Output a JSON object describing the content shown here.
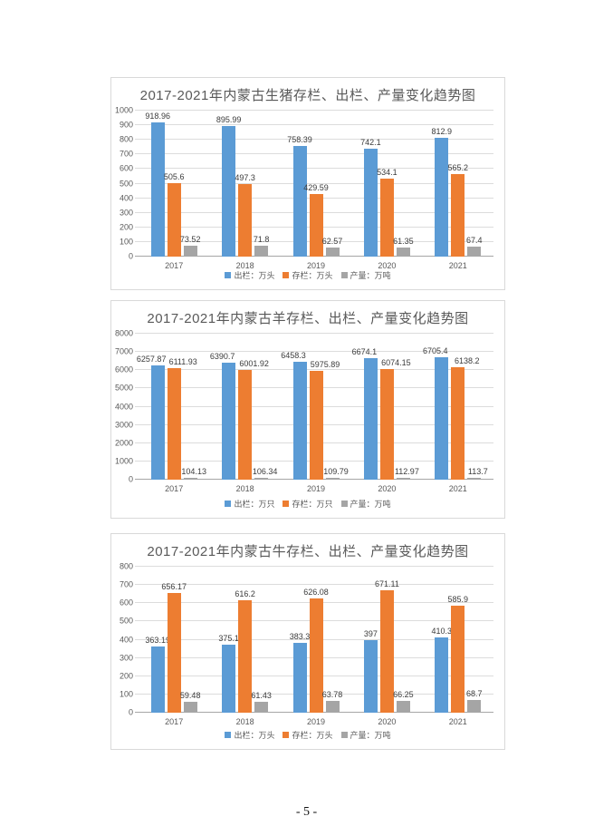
{
  "page": {
    "footer": "- 5 -"
  },
  "colors": {
    "blue": "#5B9BD5",
    "orange": "#ED7D31",
    "gray": "#A5A5A5",
    "title_text": "#595959",
    "axis_text": "#595959",
    "label_text": "#3B3B3B",
    "gridline": "#DCDCDC",
    "axis_line": "#A6A6A6",
    "panel_border": "#D9D9D9"
  },
  "chart_data": [
    {
      "type": "bar",
      "title": "2017-2021年内蒙古生猪存栏、出栏、产量变化趋势图",
      "categories": [
        "2017",
        "2018",
        "2019",
        "2020",
        "2021"
      ],
      "series": [
        {
          "name": "出栏：万头",
          "color_key": "blue",
          "values": [
            918.96,
            895.99,
            758.39,
            742.1,
            812.9
          ]
        },
        {
          "name": "存栏：万头",
          "color_key": "orange",
          "values": [
            505.6,
            497.3,
            429.59,
            534.1,
            565.2
          ]
        },
        {
          "name": "产量：万吨",
          "color_key": "gray",
          "values": [
            73.52,
            71.8,
            62.57,
            61.35,
            67.4
          ]
        }
      ],
      "ylim": [
        0,
        1000
      ],
      "ytick_step": 100,
      "grid": true,
      "legend_position": "bottom",
      "label_dx": [
        0,
        0,
        0
      ]
    },
    {
      "type": "bar",
      "title": "2017-2021年内蒙古羊存栏、出栏、产量变化趋势图",
      "categories": [
        "2017",
        "2018",
        "2019",
        "2020",
        "2021"
      ],
      "series": [
        {
          "name": "出栏：万只",
          "color_key": "blue",
          "values": [
            6257.87,
            6390.7,
            6458.3,
            6674.1,
            6705.4
          ]
        },
        {
          "name": "存栏：万只",
          "color_key": "orange",
          "values": [
            6111.93,
            6001.92,
            5975.89,
            6074.15,
            6138.2
          ]
        },
        {
          "name": "产量：万吨",
          "color_key": "gray",
          "values": [
            104.13,
            106.34,
            109.79,
            112.97,
            113.7
          ]
        }
      ],
      "ylim": [
        0,
        8000
      ],
      "ytick_step": 1000,
      "grid": true,
      "legend_position": "bottom",
      "label_dx": [
        -7,
        10,
        4
      ]
    },
    {
      "type": "bar",
      "title": "2017-2021年内蒙古牛存栏、出栏、产量变化趋势图",
      "categories": [
        "2017",
        "2018",
        "2019",
        "2020",
        "2021"
      ],
      "series": [
        {
          "name": "出栏：万头",
          "color_key": "blue",
          "values": [
            363.19,
            375.1,
            383.3,
            397,
            410.3
          ]
        },
        {
          "name": "存栏：万头",
          "color_key": "orange",
          "values": [
            656.17,
            616.2,
            626.08,
            671.11,
            585.9
          ]
        },
        {
          "name": "产量：万吨",
          "color_key": "gray",
          "values": [
            59.48,
            61.43,
            63.78,
            66.25,
            68.7
          ]
        }
      ],
      "ylim": [
        0,
        800
      ],
      "ytick_step": 100,
      "grid": true,
      "legend_position": "bottom",
      "label_dx": [
        0,
        0,
        0
      ]
    }
  ]
}
